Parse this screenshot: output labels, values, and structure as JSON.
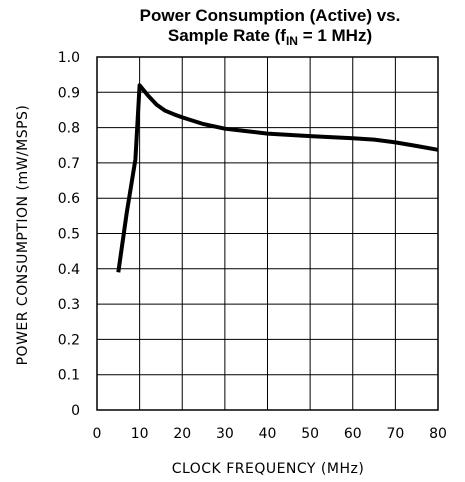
{
  "chart_data": {
    "type": "line",
    "title_line1": "Power Consumption (Active) vs.",
    "title_line2_prefix": "Sample Rate (f",
    "title_line2_subscript": "IN",
    "title_line2_suffix": " = 1 MHz)",
    "xlabel": "CLOCK FREQUENCY (MHz)",
    "ylabel": "POWER CONSUMPTION (mW/MSPS)",
    "xlim": [
      0,
      80
    ],
    "ylim": [
      0,
      1.0
    ],
    "x_ticks": [
      "0",
      "10",
      "20",
      "30",
      "40",
      "50",
      "60",
      "70",
      "80"
    ],
    "y_ticks": [
      "0",
      "0.1",
      "0.2",
      "0.3",
      "0.4",
      "0.5",
      "0.6",
      "0.7",
      "0.8",
      "0.9",
      "1.0"
    ],
    "grid": true,
    "series": [
      {
        "x": [
          5,
          7,
          9,
          10,
          12,
          14,
          16,
          18,
          20,
          25,
          30,
          35,
          40,
          50,
          60,
          65,
          70,
          75,
          80
        ],
        "y": [
          0.39,
          0.56,
          0.71,
          0.92,
          0.89,
          0.865,
          0.848,
          0.838,
          0.829,
          0.81,
          0.797,
          0.79,
          0.783,
          0.776,
          0.77,
          0.766,
          0.758,
          0.748,
          0.737
        ]
      }
    ]
  }
}
